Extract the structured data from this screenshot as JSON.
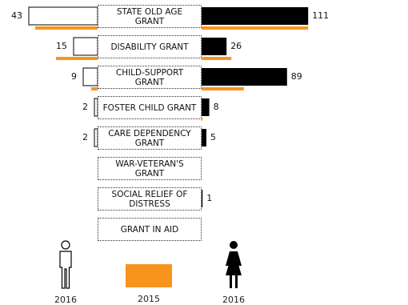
{
  "chart_data": {
    "type": "bar",
    "layout": "butterfly",
    "categories": [
      "STATE OLD AGE GRANT",
      "DISABILITY GRANT",
      "CHILD-SUPPORT GRANT",
      "FOSTER CHILD GRANT",
      "CARE DEPENDENCY GRANT",
      "WAR-VETERAN'S GRANT",
      "SOCIAL RELIEF OF DISTRESS",
      "GRANT IN AID"
    ],
    "series": [
      {
        "name": "2016",
        "side": "left",
        "icon": "male-icon",
        "color": "#ffffff",
        "values": [
          43,
          15,
          9,
          2,
          2,
          0,
          0,
          0
        ]
      },
      {
        "name": "2016",
        "side": "right",
        "icon": "female-icon",
        "color": "#000000",
        "values": [
          111,
          26,
          89,
          8,
          5,
          0,
          1,
          0
        ]
      },
      {
        "name": "2015",
        "color": "#f7941d",
        "left_values": [
          39,
          26,
          4,
          0,
          0,
          0,
          0,
          0
        ],
        "right_values": [
          111,
          31,
          44,
          1,
          0,
          0,
          0,
          0
        ]
      }
    ],
    "value_labels": {
      "left": [
        "43",
        "15",
        "9",
        "2",
        "2",
        "",
        "",
        ""
      ],
      "right": [
        "111",
        "26",
        "89",
        "8",
        "5",
        "",
        "1",
        ""
      ]
    },
    "legend": [
      {
        "label": "2016",
        "icon": "male-icon"
      },
      {
        "label": "2015",
        "color": "#f7941d"
      },
      {
        "label": "2016",
        "icon": "female-icon"
      }
    ]
  }
}
